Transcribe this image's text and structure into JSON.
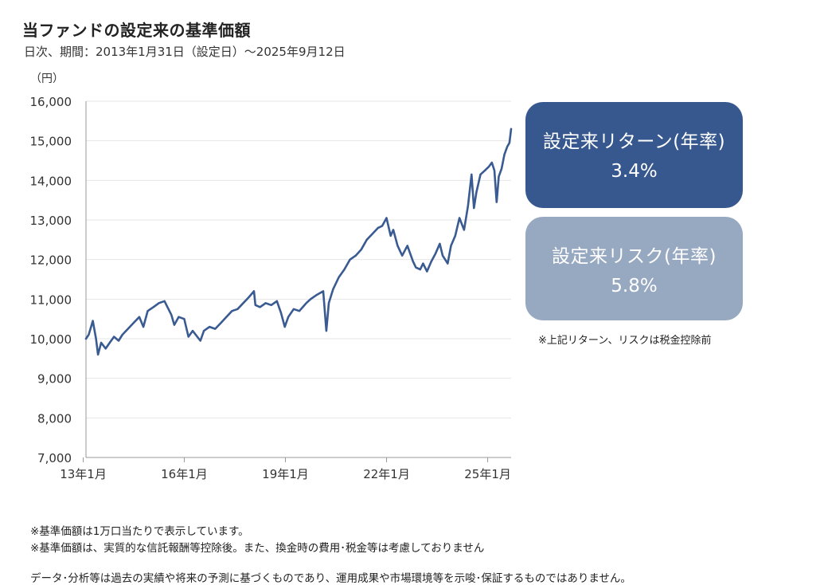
{
  "header": {
    "title": "当ファンドの設定来の基準価額",
    "subtitle": "日次、期間：2013年1月31日（設定日）～2025年9月12日",
    "unit": "（円）"
  },
  "boxes": {
    "return_label": "設定来リターン(年率)",
    "return_value": "3.4%",
    "risk_label": "設定来リスク(年率)",
    "risk_value": "5.8%",
    "note": "※上記リターン、リスクは税金控除前"
  },
  "colors": {
    "line": "#3a5a92",
    "return_box": "#37588e",
    "risk_box": "#97a8c1",
    "grid": "#e6e6e6",
    "axis": "#999999"
  },
  "footer": {
    "note1": "※基準価額は1万口当たりで表示しています。",
    "note2": "※基準価額は、実質的な信託報酬等控除後。また、換金時の費用･税金等は考慮しておりません",
    "disclaimer": "データ･分析等は過去の実績や将来の予測に基づくものであり、運用成果や市場環境等を示唆･保証するものではありません。"
  },
  "chart_data": {
    "type": "line",
    "ylim": [
      7000,
      16000
    ],
    "yticks": [
      7000,
      8000,
      9000,
      10000,
      11000,
      12000,
      13000,
      14000,
      15000,
      16000
    ],
    "ytick_labels": [
      "7,000",
      "8,000",
      "9,000",
      "10,000",
      "11,000",
      "12,000",
      "13,000",
      "14,000",
      "15,000",
      "16,000"
    ],
    "xlim": [
      "2013-01-31",
      "2025-09-12"
    ],
    "xticks": [
      "2013-01-01",
      "2016-01-01",
      "2019-01-01",
      "2022-01-01",
      "2025-01-01"
    ],
    "xtick_labels": [
      "13年1月",
      "16年1月",
      "19年1月",
      "22年1月",
      "25年1月"
    ],
    "grid": true,
    "series": [
      {
        "x": [
          "2013-01-31",
          "2013-03-01",
          "2013-04-15",
          "2013-05-20",
          "2013-06-10",
          "2013-07-15",
          "2013-09-01",
          "2013-10-15",
          "2013-12-01",
          "2014-01-20",
          "2014-03-01",
          "2014-05-01",
          "2014-07-01",
          "2014-09-01",
          "2014-10-15",
          "2014-12-01",
          "2015-02-01",
          "2015-04-01",
          "2015-06-01",
          "2015-08-15",
          "2015-09-15",
          "2015-11-01",
          "2016-01-01",
          "2016-02-15",
          "2016-04-01",
          "2016-06-24",
          "2016-08-01",
          "2016-10-01",
          "2016-12-01",
          "2017-02-01",
          "2017-04-01",
          "2017-06-01",
          "2017-08-01",
          "2017-10-01",
          "2017-12-01",
          "2018-01-25",
          "2018-02-10",
          "2018-04-01",
          "2018-06-01",
          "2018-08-01",
          "2018-10-01",
          "2018-11-15",
          "2018-12-25",
          "2019-02-01",
          "2019-04-01",
          "2019-06-01",
          "2019-08-15",
          "2019-10-01",
          "2019-12-01",
          "2020-02-15",
          "2020-03-20",
          "2020-04-15",
          "2020-06-01",
          "2020-08-01",
          "2020-10-01",
          "2020-12-01",
          "2021-02-01",
          "2021-04-01",
          "2021-06-01",
          "2021-08-01",
          "2021-10-01",
          "2021-11-15",
          "2022-01-01",
          "2022-02-15",
          "2022-03-15",
          "2022-05-01",
          "2022-06-20",
          "2022-08-15",
          "2022-10-15",
          "2022-11-15",
          "2023-01-01",
          "2023-02-01",
          "2023-03-15",
          "2023-05-01",
          "2023-06-15",
          "2023-08-01",
          "2023-09-01",
          "2023-10-25",
          "2023-12-01",
          "2024-01-15",
          "2024-03-01",
          "2024-04-20",
          "2024-06-01",
          "2024-07-10",
          "2024-08-05",
          "2024-09-01",
          "2024-10-15",
          "2024-12-01",
          "2025-01-15",
          "2025-02-15",
          "2025-03-15",
          "2025-04-08",
          "2025-05-01",
          "2025-06-01",
          "2025-07-01",
          "2025-08-01",
          "2025-08-25",
          "2025-09-12"
        ],
        "values": [
          10000,
          10100,
          10450,
          10000,
          9600,
          9900,
          9750,
          9900,
          10050,
          9950,
          10100,
          10250,
          10400,
          10550,
          10300,
          10700,
          10800,
          10900,
          10950,
          10600,
          10350,
          10550,
          10500,
          10050,
          10200,
          9950,
          10200,
          10300,
          10250,
          10400,
          10550,
          10700,
          10750,
          10900,
          11050,
          11200,
          10850,
          10800,
          10900,
          10850,
          10950,
          10650,
          10300,
          10550,
          10750,
          10700,
          10900,
          11000,
          11100,
          11200,
          10200,
          10900,
          11250,
          11550,
          11750,
          12000,
          12100,
          12250,
          12500,
          12650,
          12800,
          12850,
          13050,
          12600,
          12750,
          12350,
          12100,
          12350,
          11950,
          11800,
          11750,
          11900,
          11700,
          11950,
          12150,
          12400,
          12100,
          11900,
          12350,
          12600,
          13050,
          12750,
          13350,
          14150,
          13300,
          13700,
          14150,
          14250,
          14350,
          14450,
          14250,
          13450,
          14100,
          14300,
          14650,
          14850,
          14950,
          15300
        ]
      }
    ]
  }
}
